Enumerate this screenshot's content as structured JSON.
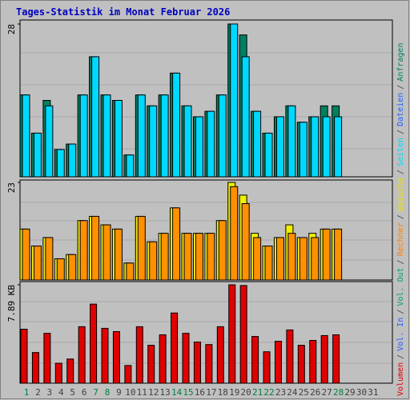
{
  "title": "Tages-Statistik im Monat Februar 2026",
  "legend_separator": "/",
  "legend": [
    {
      "name": "Volumen",
      "color": "#e00000"
    },
    {
      "name": "Vol. In",
      "color": "#2060ff"
    },
    {
      "name": "Vol. Out",
      "color": "#00a060"
    },
    {
      "name": "Rechner",
      "color": "#ff8000"
    },
    {
      "name": "Besuche",
      "color": "#e8e000"
    },
    {
      "name": "Seiten",
      "color": "#00d8ff"
    },
    {
      "name": "Dateien",
      "color": "#2060ff"
    },
    {
      "name": "Anfragen",
      "color": "#008060"
    }
  ],
  "chart_data": [
    {
      "type": "bar",
      "ylim": [
        0,
        28
      ],
      "yticks": [
        28
      ],
      "series": [
        {
          "name": "Anfragen",
          "color": "#008060",
          "values": [
            15,
            8,
            14,
            5,
            6,
            15,
            22,
            15,
            14,
            4,
            15,
            13,
            15,
            19,
            13,
            11,
            12,
            15,
            28,
            26,
            12,
            8,
            11,
            13,
            10,
            11,
            13,
            13,
            null,
            null,
            null
          ]
        },
        {
          "name": "Seiten",
          "color": "#00d8ff",
          "values": [
            15,
            8,
            13,
            5,
            6,
            15,
            22,
            15,
            14,
            4,
            15,
            13,
            15,
            19,
            13,
            11,
            12,
            15,
            28,
            22,
            12,
            8,
            11,
            13,
            10,
            11,
            11,
            11,
            null,
            null,
            null
          ]
        }
      ]
    },
    {
      "type": "bar",
      "ylim": [
        0,
        23
      ],
      "yticks": [
        23
      ],
      "series": [
        {
          "name": "Besuche",
          "color": "#f0f000",
          "values": [
            12,
            8,
            10,
            5,
            6,
            14,
            15,
            13,
            12,
            4,
            15,
            9,
            11,
            17,
            11,
            11,
            11,
            14,
            23,
            20,
            11,
            8,
            10,
            13,
            10,
            11,
            12,
            12,
            null,
            null,
            null
          ]
        },
        {
          "name": "Rechner",
          "color": "#ff9000",
          "values": [
            12,
            8,
            10,
            5,
            6,
            14,
            15,
            13,
            12,
            4,
            15,
            9,
            11,
            17,
            11,
            11,
            11,
            14,
            22,
            18,
            10,
            8,
            10,
            11,
            10,
            10,
            12,
            12,
            null,
            null,
            null
          ]
        }
      ]
    },
    {
      "type": "bar",
      "ylim": [
        0,
        7.89
      ],
      "yticks": [
        {
          "value": 7.89,
          "label": "7.89 KB"
        }
      ],
      "categories": [
        "1",
        "2",
        "3",
        "4",
        "5",
        "6",
        "7",
        "8",
        "9",
        "10",
        "11",
        "12",
        "13",
        "14",
        "15",
        "16",
        "17",
        "18",
        "19",
        "20",
        "21",
        "22",
        "23",
        "24",
        "25",
        "26",
        "27",
        "28",
        "29",
        "30",
        "31"
      ],
      "highlight_categories": [
        "1",
        "7",
        "8",
        "14",
        "15",
        "21",
        "22",
        "28"
      ],
      "highlight_color": "#008040",
      "series": [
        {
          "name": "Volumen",
          "color": "#e00000",
          "values": [
            4.33,
            2.46,
            4.0,
            1.6,
            1.94,
            4.53,
            6.34,
            4.4,
            4.14,
            1.42,
            4.53,
            3.04,
            3.88,
            5.63,
            4.0,
            3.3,
            3.1,
            4.53,
            7.89,
            7.83,
            3.75,
            2.52,
            3.36,
            4.27,
            3.04,
            3.43,
            3.82,
            3.88,
            null,
            null,
            null
          ]
        }
      ]
    }
  ]
}
